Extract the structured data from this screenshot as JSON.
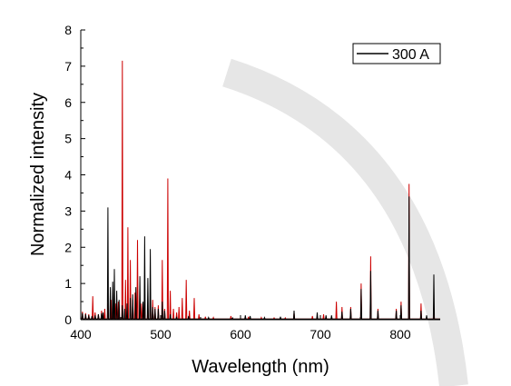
{
  "chart_data": {
    "type": "line",
    "title": "",
    "xlabel": "Wavelength (nm)",
    "ylabel": "Normalized intensity",
    "xlim": [
      400,
      850
    ],
    "ylim": [
      0,
      8
    ],
    "xticks": [
      400,
      500,
      600,
      700,
      800
    ],
    "yticks": [
      0,
      1,
      2,
      3,
      4,
      5,
      6,
      7,
      8
    ],
    "grid": false,
    "legend": {
      "position": "top-right",
      "entries": [
        "300 A"
      ]
    },
    "series": [
      {
        "name": "300 A",
        "color": "#000000",
        "points": [
          [
            402,
            0.18
          ],
          [
            406,
            0.15
          ],
          [
            410,
            0.12
          ],
          [
            414,
            0.1
          ],
          [
            418,
            0.12
          ],
          [
            422,
            0.15
          ],
          [
            426,
            0.18
          ],
          [
            428,
            0.2
          ],
          [
            434,
            3.1
          ],
          [
            437,
            0.9
          ],
          [
            440,
            1.05
          ],
          [
            442,
            1.4
          ],
          [
            445,
            0.8
          ],
          [
            448,
            0.55
          ],
          [
            452,
            0.4
          ],
          [
            455,
            0.3
          ],
          [
            458,
            0.45
          ],
          [
            462,
            0.6
          ],
          [
            465,
            0.7
          ],
          [
            469,
            0.9
          ],
          [
            474,
            1.2
          ],
          [
            478,
            0.5
          ],
          [
            480,
            2.3
          ],
          [
            484,
            1.15
          ],
          [
            487,
            1.95
          ],
          [
            490,
            0.35
          ],
          [
            493,
            0.3
          ],
          [
            497,
            0.3
          ],
          [
            502,
            0.5
          ],
          [
            505,
            0.25
          ],
          [
            512,
            0.15
          ],
          [
            520,
            0.08
          ],
          [
            535,
            0.1
          ],
          [
            560,
            0.06
          ],
          [
            590,
            0.05
          ],
          [
            606,
            0.12
          ],
          [
            612,
            0.1
          ],
          [
            630,
            0.06
          ],
          [
            650,
            0.08
          ],
          [
            667,
            0.25
          ],
          [
            696,
            0.2
          ],
          [
            707,
            0.12
          ],
          [
            714,
            0.12
          ],
          [
            727,
            0.22
          ],
          [
            738,
            0.3
          ],
          [
            751,
            0.85
          ],
          [
            763,
            1.35
          ],
          [
            772,
            0.25
          ],
          [
            795,
            0.25
          ],
          [
            801,
            0.4
          ],
          [
            811,
            3.4
          ],
          [
            826,
            0.25
          ],
          [
            833,
            0.12
          ],
          [
            842,
            1.25
          ]
        ]
      },
      {
        "name": "",
        "color": "#cc0000",
        "points": [
          [
            402,
            0.22
          ],
          [
            406,
            0.18
          ],
          [
            410,
            0.15
          ],
          [
            415,
            0.65
          ],
          [
            418,
            0.2
          ],
          [
            422,
            0.15
          ],
          [
            426,
            0.25
          ],
          [
            430,
            0.3
          ],
          [
            434,
            0.45
          ],
          [
            438,
            0.55
          ],
          [
            441,
            0.35
          ],
          [
            444,
            0.45
          ],
          [
            447,
            0.5
          ],
          [
            452,
            7.15
          ],
          [
            456,
            1.1
          ],
          [
            459,
            2.55
          ],
          [
            462,
            1.65
          ],
          [
            465,
            0.55
          ],
          [
            468,
            0.75
          ],
          [
            471,
            2.2
          ],
          [
            476,
            0.45
          ],
          [
            480,
            0.6
          ],
          [
            484,
            0.4
          ],
          [
            487,
            0.7
          ],
          [
            490,
            0.55
          ],
          [
            493,
            0.35
          ],
          [
            497,
            0.4
          ],
          [
            502,
            1.65
          ],
          [
            505,
            0.3
          ],
          [
            509,
            3.9
          ],
          [
            512,
            0.8
          ],
          [
            516,
            0.3
          ],
          [
            520,
            0.2
          ],
          [
            523,
            0.35
          ],
          [
            527,
            0.6
          ],
          [
            532,
            1.1
          ],
          [
            536,
            0.25
          ],
          [
            542,
            0.6
          ],
          [
            548,
            0.15
          ],
          [
            556,
            0.08
          ],
          [
            566,
            0.06
          ],
          [
            588,
            0.1
          ],
          [
            610,
            0.08
          ],
          [
            626,
            0.06
          ],
          [
            642,
            0.05
          ],
          [
            656,
            0.05
          ],
          [
            667,
            0.18
          ],
          [
            690,
            0.1
          ],
          [
            704,
            0.15
          ],
          [
            720,
            0.5
          ],
          [
            727,
            0.35
          ],
          [
            738,
            0.35
          ],
          [
            751,
            1.0
          ],
          [
            763,
            1.75
          ],
          [
            772,
            0.3
          ],
          [
            795,
            0.3
          ],
          [
            801,
            0.5
          ],
          [
            811,
            3.75
          ],
          [
            826,
            0.45
          ],
          [
            842,
            0.35
          ]
        ]
      }
    ]
  }
}
